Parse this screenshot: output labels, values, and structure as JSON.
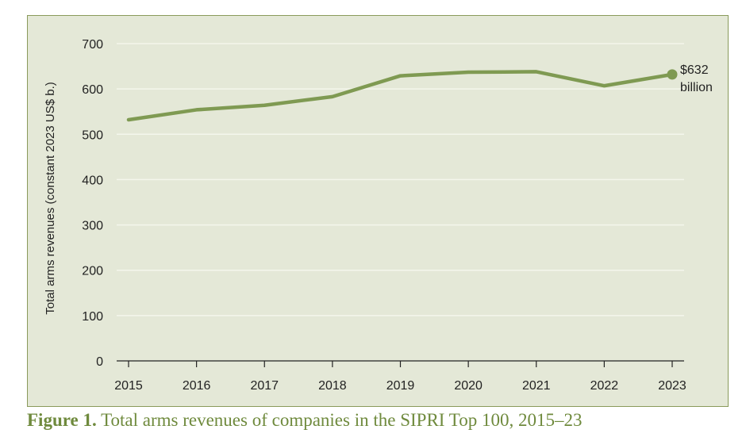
{
  "chart_data": {
    "type": "line",
    "x": [
      2015,
      2016,
      2017,
      2018,
      2019,
      2020,
      2021,
      2022,
      2023
    ],
    "categories": [
      "2015",
      "2016",
      "2017",
      "2018",
      "2019",
      "2020",
      "2021",
      "2022",
      "2023"
    ],
    "series": [
      {
        "values": [
          532,
          554,
          564,
          583,
          629,
          637,
          638,
          607,
          632
        ],
        "color": "#7f9a52"
      }
    ],
    "ylabel": "Total arms revenues (constant 2023 US$ b.)",
    "xlabel": "",
    "ylim": [
      0,
      700
    ],
    "yticks": [
      0,
      100,
      200,
      300,
      400,
      500,
      600,
      700
    ],
    "grid": true,
    "annotation": {
      "value_label": "$632",
      "unit_label": "billion"
    },
    "colors": {
      "panel_background": "#e4e8d7",
      "panel_border": "#8a9a5b",
      "line": "#7f9a52",
      "grid": "#f4f6ec",
      "caption": "#6f8a3d"
    }
  },
  "caption": {
    "figure_label": "Figure 1.",
    "text": " Total arms revenues of companies in the SIPRI Top 100, 2015–23"
  }
}
